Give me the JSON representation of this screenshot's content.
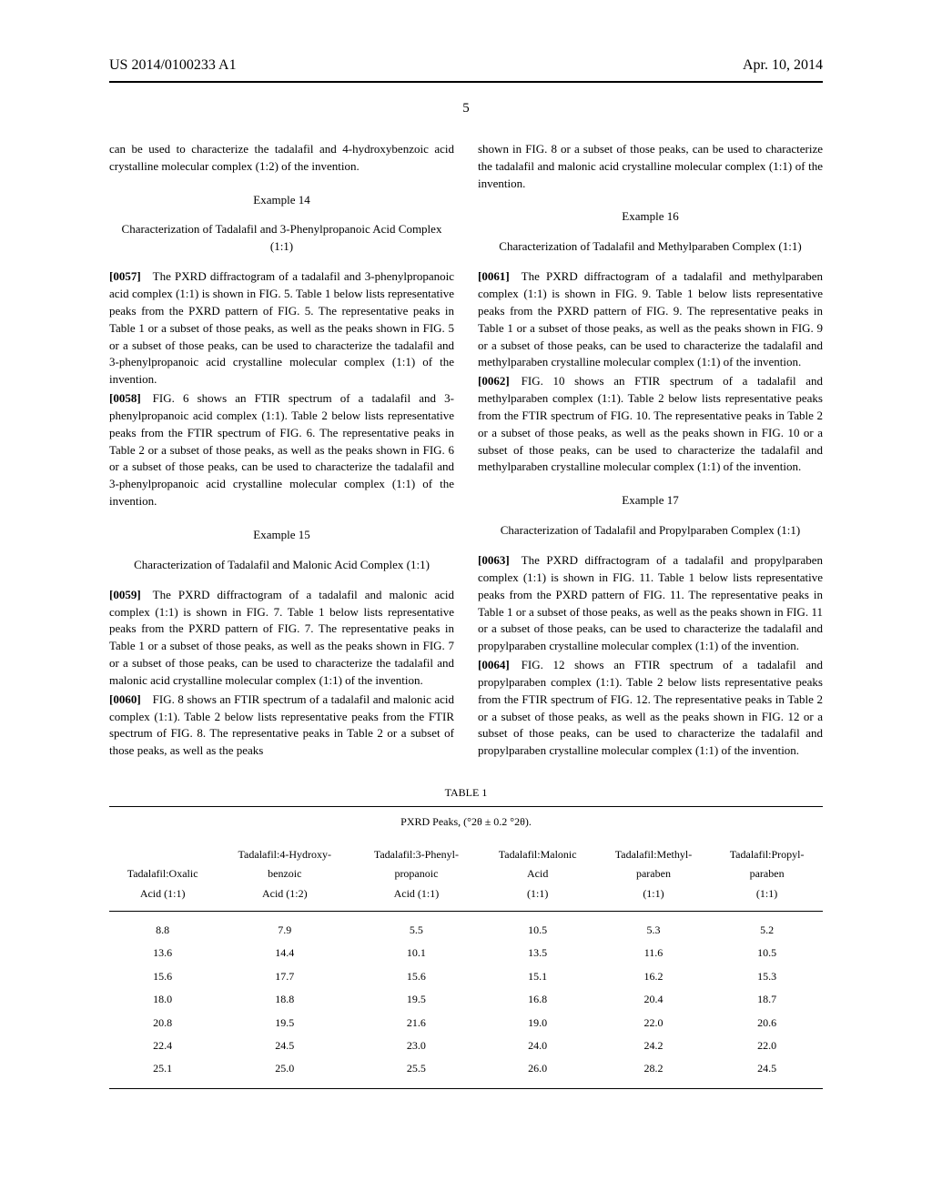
{
  "header": {
    "left": "US 2014/0100233 A1",
    "right": "Apr. 10, 2014"
  },
  "page_number": "5",
  "left_col": {
    "lead": "can be used to characterize the tadalafil and 4-hydroxybenzoic acid crystalline molecular complex (1:2) of the invention.",
    "ex14_head": "Example 14",
    "ex14_title": "Characterization of Tadalafil and 3-Phenylpropanoic Acid Complex (1:1)",
    "p0057_num": "[0057]",
    "p0057": " The PXRD diffractogram of a tadalafil and 3-phenylpropanoic acid complex (1:1) is shown in FIG. 5. Table 1 below lists representative peaks from the PXRD pattern of FIG. 5. The representative peaks in Table 1 or a subset of those peaks, as well as the peaks shown in FIG. 5 or a subset of those peaks, can be used to characterize the tadalafil and 3-phenylpropanoic acid crystalline molecular complex (1:1) of the invention.",
    "p0058_num": "[0058]",
    "p0058": " FIG. 6 shows an FTIR spectrum of a tadalafil and 3-phenylpropanoic acid complex (1:1). Table 2 below lists representative peaks from the FTIR spectrum of FIG. 6. The representative peaks in Table 2 or a subset of those peaks, as well as the peaks shown in FIG. 6 or a subset of those peaks, can be used to characterize the tadalafil and 3-phenylpropanoic acid crystalline molecular complex (1:1) of the invention.",
    "ex15_head": "Example 15",
    "ex15_title": "Characterization of Tadalafil and Malonic Acid Complex (1:1)",
    "p0059_num": "[0059]",
    "p0059": " The PXRD diffractogram of a tadalafil and malonic acid complex (1:1) is shown in FIG. 7. Table 1 below lists representative peaks from the PXRD pattern of FIG. 7. The representative peaks in Table 1 or a subset of those peaks, as well as the peaks shown in FIG. 7 or a subset of those peaks, can be used to characterize the tadalafil and malonic acid crystalline molecular complex (1:1) of the invention.",
    "p0060_num": "[0060]",
    "p0060": " FIG. 8 shows an FTIR spectrum of a tadalafil and malonic acid complex (1:1). Table 2 below lists representative peaks from the FTIR spectrum of FIG. 8. The representative peaks in Table 2 or a subset of those peaks, as well as the peaks"
  },
  "right_col": {
    "lead": "shown in FIG. 8 or a subset of those peaks, can be used to characterize the tadalafil and malonic acid crystalline molecular complex (1:1) of the invention.",
    "ex16_head": "Example 16",
    "ex16_title": "Characterization of Tadalafil and Methylparaben Complex (1:1)",
    "p0061_num": "[0061]",
    "p0061": " The PXRD diffractogram of a tadalafil and methylparaben complex (1:1) is shown in FIG. 9. Table 1 below lists representative peaks from the PXRD pattern of FIG. 9. The representative peaks in Table 1 or a subset of those peaks, as well as the peaks shown in FIG. 9 or a subset of those peaks, can be used to characterize the tadalafil and methylparaben crystalline molecular complex (1:1) of the invention.",
    "p0062_num": "[0062]",
    "p0062": " FIG. 10 shows an FTIR spectrum of a tadalafil and methylparaben complex (1:1). Table 2 below lists representative peaks from the FTIR spectrum of FIG. 10. The representative peaks in Table 2 or a subset of those peaks, as well as the peaks shown in FIG. 10 or a subset of those peaks, can be used to characterize the tadalafil and methylparaben crystalline molecular complex (1:1) of the invention.",
    "ex17_head": "Example 17",
    "ex17_title": "Characterization of Tadalafil and Propylparaben Complex (1:1)",
    "p0063_num": "[0063]",
    "p0063": " The PXRD diffractogram of a tadalafil and propylparaben complex (1:1) is shown in FIG. 11. Table 1 below lists representative peaks from the PXRD pattern of FIG. 11. The representative peaks in Table 1 or a subset of those peaks, as well as the peaks shown in FIG. 11 or a subset of those peaks, can be used to characterize the tadalafil and propylparaben crystalline molecular complex (1:1) of the invention.",
    "p0064_num": "[0064]",
    "p0064": " FIG. 12 shows an FTIR spectrum of a tadalafil and propylparaben complex (1:1). Table 2 below lists representative peaks from the FTIR spectrum of FIG. 12. The representative peaks in Table 2 or a subset of those peaks, as well as the peaks shown in FIG. 12 or a subset of those peaks, can be used to characterize the tadalafil and propylparaben crystalline molecular complex (1:1) of the invention."
  },
  "table1": {
    "label": "TABLE 1",
    "title": "PXRD Peaks, (°2θ ± 0.2 °2θ).",
    "columns_l1": [
      "",
      "Tadalafil:4-Hydroxy-",
      "Tadalafil:3-Phenyl-",
      "Tadalafil:Malonic",
      "Tadalafil:Methyl-",
      "Tadalafil:Propyl-"
    ],
    "columns_l2": [
      "Tadalafil:Oxalic",
      "benzoic",
      "propanoic",
      "Acid",
      "paraben",
      "paraben"
    ],
    "columns_l3": [
      "Acid (1:1)",
      "Acid (1:2)",
      "Acid (1:1)",
      "(1:1)",
      "(1:1)",
      "(1:1)"
    ],
    "rows": [
      [
        "8.8",
        "7.9",
        "5.5",
        "10.5",
        "5.3",
        "5.2"
      ],
      [
        "13.6",
        "14.4",
        "10.1",
        "13.5",
        "11.6",
        "10.5"
      ],
      [
        "15.6",
        "17.7",
        "15.6",
        "15.1",
        "16.2",
        "15.3"
      ],
      [
        "18.0",
        "18.8",
        "19.5",
        "16.8",
        "20.4",
        "18.7"
      ],
      [
        "20.8",
        "19.5",
        "21.6",
        "19.0",
        "22.0",
        "20.6"
      ],
      [
        "22.4",
        "24.5",
        "23.0",
        "24.0",
        "24.2",
        "22.0"
      ],
      [
        "25.1",
        "25.0",
        "25.5",
        "26.0",
        "28.2",
        "24.5"
      ]
    ]
  }
}
